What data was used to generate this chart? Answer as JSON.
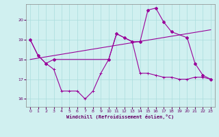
{
  "xlabel": "Windchill (Refroidissement éolien,°C)",
  "bg_color": "#d0f0f0",
  "line_color": "#990099",
  "xlim": [
    -0.5,
    23.5
  ],
  "ylim": [
    15.6,
    20.8
  ],
  "yticks": [
    16,
    17,
    18,
    19,
    20
  ],
  "xticks": [
    0,
    1,
    2,
    3,
    4,
    5,
    6,
    7,
    8,
    9,
    10,
    11,
    12,
    13,
    14,
    15,
    16,
    17,
    18,
    19,
    20,
    21,
    22,
    23
  ],
  "series1_x": [
    0,
    1,
    2,
    3,
    4,
    5,
    6,
    7,
    8,
    9,
    10,
    11,
    12,
    13,
    14,
    15,
    16,
    17,
    18,
    19,
    20,
    21,
    22,
    23
  ],
  "series1_y": [
    19.0,
    18.2,
    17.8,
    17.5,
    16.4,
    16.4,
    16.4,
    16.0,
    16.4,
    17.3,
    18.0,
    19.3,
    19.1,
    18.9,
    17.3,
    17.3,
    17.2,
    17.1,
    17.1,
    17.0,
    17.0,
    17.1,
    17.1,
    17.0
  ],
  "series2_x": [
    0,
    1,
    2,
    3,
    10,
    11,
    12,
    13,
    14,
    15,
    16,
    17,
    18,
    20,
    21,
    22,
    23
  ],
  "series2_y": [
    19.0,
    18.2,
    17.8,
    18.0,
    18.0,
    19.3,
    19.1,
    18.9,
    18.9,
    20.5,
    20.6,
    19.9,
    19.4,
    19.1,
    17.8,
    17.2,
    17.0
  ],
  "series3_x": [
    0,
    23
  ],
  "series3_y": [
    18.0,
    19.5
  ],
  "grid_color": "#aadddd",
  "tick_color": "#660066",
  "xlabel_color": "#660066"
}
